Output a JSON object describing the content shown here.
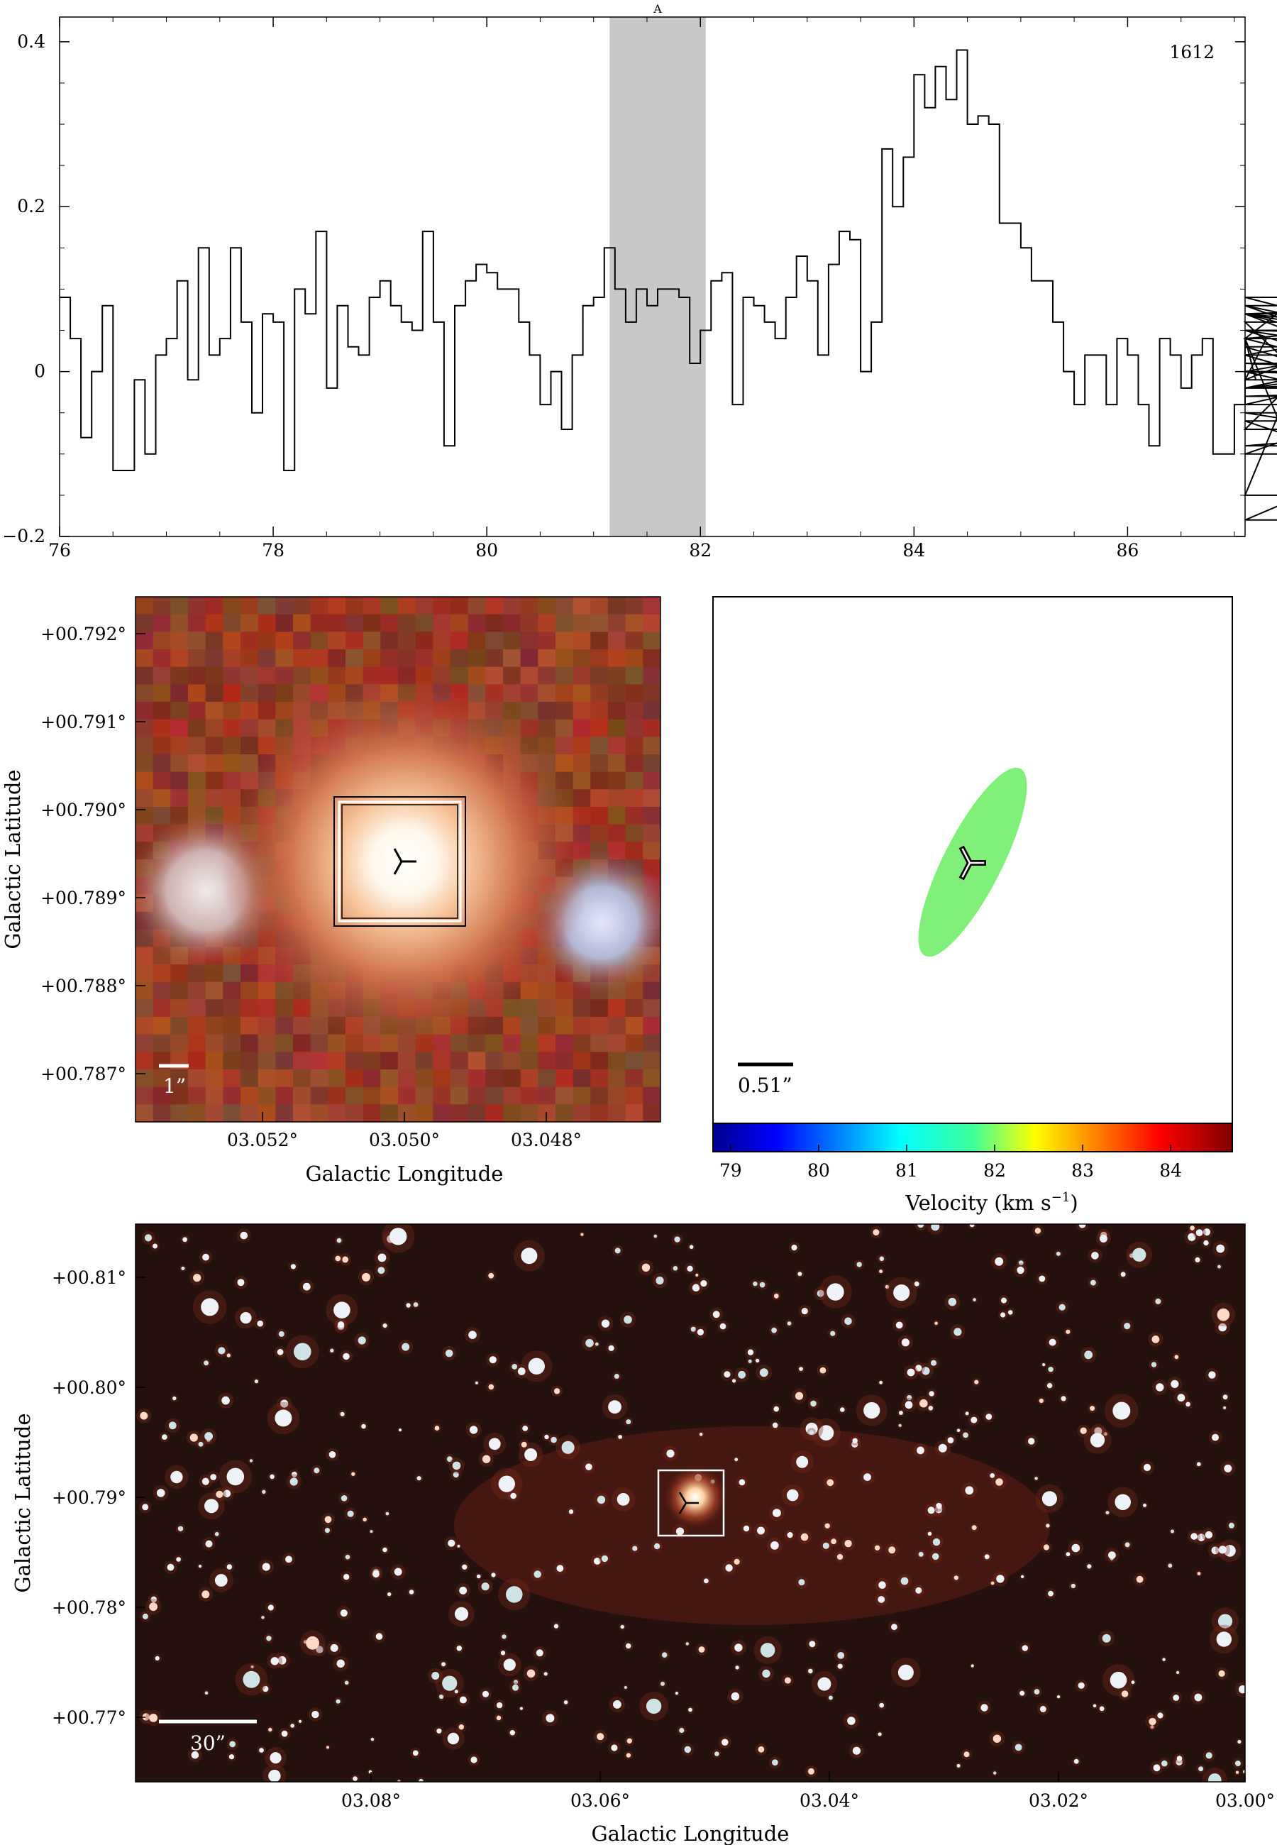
{
  "chart_data": [
    {
      "type": "line",
      "step": true,
      "label_top_right": "1612",
      "highlight": {
        "label": "A",
        "x_range": [
          81.15,
          82.05
        ],
        "color": "#c8c8c8"
      },
      "xlim": [
        76.0,
        87.1
      ],
      "ylim": [
        -0.2,
        0.43
      ],
      "x_ticks": [
        76,
        78,
        80,
        82,
        84,
        86
      ],
      "x_tick_labels": [
        "76",
        "78",
        "80",
        "82",
        "84",
        "86"
      ],
      "y_ticks": [
        -0.2,
        0,
        0.2,
        0.4
      ],
      "y_tick_labels": [
        "−0.2",
        "0",
        "0.2",
        "0.4"
      ],
      "bin_start": 76.0,
      "bin_width": 0.1,
      "values": [
        0.09,
        0.04,
        -0.08,
        0.0,
        0.08,
        -0.12,
        -0.12,
        -0.01,
        -0.1,
        0.02,
        0.04,
        0.11,
        -0.01,
        0.15,
        0.02,
        0.04,
        0.15,
        0.06,
        -0.05,
        0.07,
        0.06,
        -0.12,
        0.1,
        0.07,
        0.17,
        -0.02,
        0.08,
        0.03,
        0.02,
        0.09,
        0.11,
        0.08,
        0.06,
        0.05,
        0.17,
        0.06,
        -0.09,
        0.08,
        0.11,
        0.13,
        0.12,
        0.1,
        0.1,
        0.06,
        0.02,
        -0.04,
        0.0,
        -0.07,
        0.02,
        0.08,
        0.09,
        0.15,
        0.1,
        0.06,
        0.1,
        0.08,
        0.1,
        0.1,
        0.09,
        0.01,
        0.05,
        0.11,
        0.12,
        -0.04,
        0.09,
        0.08,
        0.06,
        0.04,
        0.09,
        0.14,
        0.11,
        0.02,
        0.13,
        0.17,
        0.16,
        0.0,
        0.06,
        0.27,
        0.2,
        0.26,
        0.36,
        0.32,
        0.37,
        0.33,
        0.39,
        0.3,
        0.31,
        0.3,
        0.18,
        0.18,
        0.15,
        0.11,
        0.11,
        0.06,
        0.0,
        -0.04,
        0.02,
        0.02,
        -0.04,
        0.04,
        0.02,
        -0.04,
        -0.09,
        0.04,
        0.02,
        -0.02,
        0.02,
        0.04,
        -0.1,
        -0.1,
        -0.04,
        0.04,
        -0.01,
        0.04,
        0.07,
        0.05,
        0.04,
        -0.15,
        0.07,
        0.06,
        -0.05,
        -0.07,
        0.07,
        0.03,
        -0.02,
        -0.02,
        0.02,
        -0.04,
        0.01,
        0.0,
        -0.01,
        0.09,
        0.02,
        0.07,
        0.08,
        -0.03,
        -0.02,
        0.05,
        -0.06,
        -0.18,
        -0.02,
        0.0,
        0.07,
        0.0,
        -0.1,
        0.05,
        0.04,
        0.08,
        -0.02,
        0.04,
        -0.09,
        -0.05
      ],
      "xlabel": "",
      "ylabel": ""
    },
    {
      "type": "heatmap",
      "role": "rgb-image-zoom",
      "x_ticks": [
        3.052,
        3.05,
        3.048
      ],
      "x_tick_labels": [
        "03.052°",
        "03.050°",
        "03.048°"
      ],
      "y_ticks": [
        0.792,
        0.791,
        0.79,
        0.789,
        0.788,
        0.787
      ],
      "y_tick_labels": [
        "+00.792°",
        "+00.791°",
        "+00.790°",
        "+00.789°",
        "+00.788°",
        "+00.787°"
      ],
      "xlabel": "Galactic Longitude",
      "ylabel": "Galactic Latitude",
      "scalebar_label": "1”"
    },
    {
      "type": "scatter",
      "role": "velocity-ellipse",
      "scalebar_label": "0.51”",
      "ellipse_color": "#80f07a",
      "colorbar": {
        "range": [
          78.8,
          84.7
        ],
        "ticks": [
          79,
          80,
          81,
          82,
          83,
          84
        ],
        "tick_labels": [
          "79",
          "80",
          "81",
          "82",
          "83",
          "84"
        ],
        "label": "Velocity (km s",
        "label_sup": "−1",
        "label_close": ")"
      }
    },
    {
      "type": "heatmap",
      "role": "rgb-image-wide",
      "x_ticks": [
        3.08,
        3.06,
        3.04,
        3.02,
        3.0
      ],
      "x_tick_labels": [
        "03.08°",
        "03.06°",
        "03.04°",
        "03.02°",
        "03.00°"
      ],
      "y_ticks": [
        0.81,
        0.8,
        0.79,
        0.78,
        0.77
      ],
      "y_tick_labels": [
        "+00.81°",
        "+00.80°",
        "+00.79°",
        "+00.78°",
        "+00.77°"
      ],
      "xlabel": "Galactic Longitude",
      "ylabel": "Galactic Latitude",
      "scalebar_label": "30”"
    }
  ]
}
